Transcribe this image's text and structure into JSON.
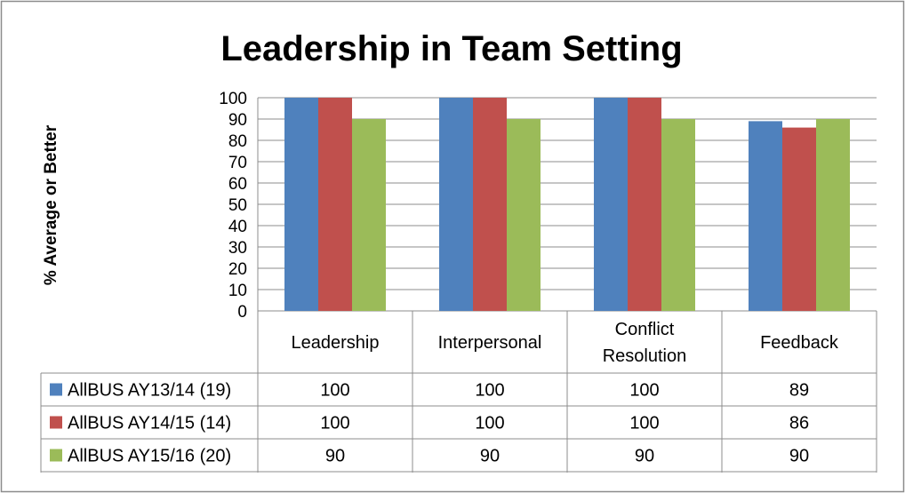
{
  "chart_data": {
    "type": "bar",
    "title": "Leadership in Team Setting",
    "ylabel": "% Average or Better",
    "xlabel": "",
    "ylim": [
      0,
      100
    ],
    "yticks": [
      0,
      10,
      20,
      30,
      40,
      50,
      60,
      70,
      80,
      90,
      100
    ],
    "grid": true,
    "legend": "data-table-below",
    "categories": [
      [
        "Leadership"
      ],
      [
        "Interpersonal"
      ],
      [
        "Conflict",
        "Resolution"
      ],
      [
        "Feedback"
      ]
    ],
    "series": [
      {
        "name": "AllBUS AY13/14 (19)",
        "color": "#4f81bd",
        "values": [
          100,
          100,
          100,
          89
        ]
      },
      {
        "name": "AllBUS AY14/15 (14)",
        "color": "#c0504d",
        "values": [
          100,
          100,
          100,
          86
        ]
      },
      {
        "name": "AllBUS AY15/16 (20)",
        "color": "#9bbb59",
        "values": [
          90,
          90,
          90,
          90
        ]
      }
    ]
  }
}
